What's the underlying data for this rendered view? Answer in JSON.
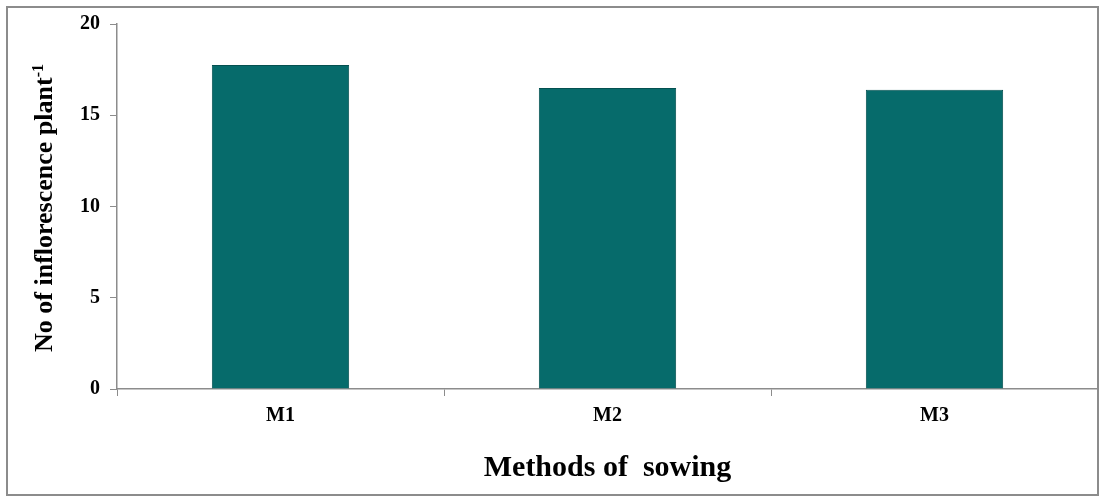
{
  "chart_data": {
    "type": "bar",
    "xlabel": "Methods of  sowing",
    "ylabel": "No of  inflorescence plant$^{-1}$",
    "categories": [
      "M1",
      "M2",
      "M3"
    ],
    "values": [
      17.75,
      16.5,
      16.4
    ],
    "color": "#066b6b",
    "ylim": [
      0,
      20
    ],
    "yticks": [
      0,
      5,
      10,
      15,
      20
    ],
    "grid": false,
    "legend": false
  }
}
